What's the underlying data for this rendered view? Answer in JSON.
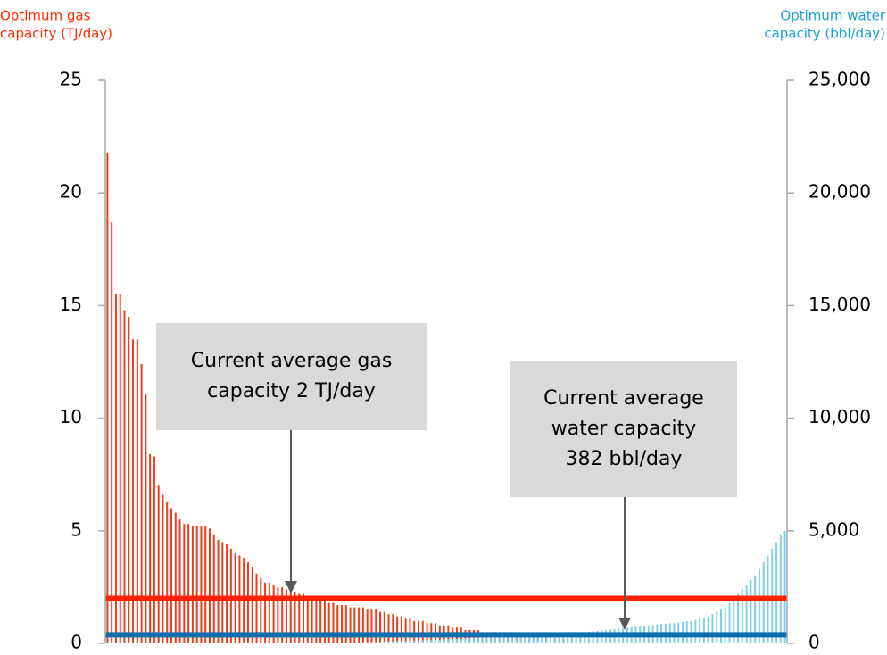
{
  "chart_data": {
    "type": "bar",
    "y_label": [
      "Optimum gas",
      "capacity (TJ/day)"
    ],
    "y2_label": [
      "Optimum water",
      "capacity (bbl/day)"
    ],
    "label_colors": {
      "y": "#ff2a00",
      "y2": "#1aa0d8"
    },
    "categories": [
      null,
      null,
      null,
      null,
      null,
      null,
      null,
      null,
      null,
      null,
      null,
      null,
      null,
      null,
      null,
      null,
      null,
      null,
      null,
      null,
      null,
      null,
      null,
      null,
      null,
      null,
      null,
      null,
      null,
      null,
      null,
      null,
      null,
      null,
      null,
      null,
      null,
      null,
      null,
      null,
      null,
      null,
      null,
      null,
      null,
      null,
      null,
      null,
      null,
      null,
      null,
      null,
      null,
      null,
      null,
      null,
      null,
      null,
      null,
      null,
      null,
      null,
      null,
      null,
      null,
      null,
      null,
      null,
      null,
      null,
      null,
      null,
      null,
      null,
      null,
      null,
      null,
      null,
      null,
      null,
      null,
      null,
      null,
      null,
      null,
      null,
      null,
      null,
      null,
      null,
      null,
      null,
      null,
      null,
      null,
      null,
      null,
      null,
      null,
      null,
      null,
      null,
      null,
      null,
      null,
      null,
      null,
      null,
      null,
      null,
      null,
      null,
      null,
      null,
      null,
      null,
      null,
      null,
      null,
      null,
      null,
      null,
      null,
      null,
      null,
      null,
      null,
      null,
      null,
      null,
      null,
      null,
      null,
      null,
      null,
      null,
      null,
      null,
      null,
      null,
      null,
      null,
      null,
      null,
      null,
      null,
      null,
      null,
      null,
      null,
      null,
      null,
      null,
      null,
      null,
      null,
      null,
      null,
      null,
      null
    ],
    "series": [
      {
        "color": "#e8401c",
        "axis": "y",
        "values": [
          21.8,
          18.7,
          15.5,
          15.5,
          14.8,
          14.5,
          13.5,
          13.5,
          12.4,
          11.1,
          8.4,
          8.3,
          7.0,
          6.6,
          6.3,
          6.0,
          5.8,
          5.5,
          5.3,
          5.3,
          5.2,
          5.2,
          5.2,
          5.2,
          5.1,
          4.8,
          4.6,
          4.5,
          4.4,
          4.2,
          4.0,
          3.9,
          3.8,
          3.6,
          3.4,
          3.1,
          2.9,
          2.7,
          2.7,
          2.6,
          2.5,
          2.5,
          2.4,
          2.3,
          2.3,
          2.2,
          2.2,
          2.1,
          2.1,
          2.0,
          2.0,
          1.9,
          1.8,
          1.8,
          1.7,
          1.7,
          1.7,
          1.6,
          1.6,
          1.6,
          1.6,
          1.5,
          1.5,
          1.5,
          1.4,
          1.4,
          1.3,
          1.3,
          1.2,
          1.2,
          1.1,
          1.1,
          1.0,
          1.0,
          1.0,
          0.9,
          0.9,
          0.9,
          0.8,
          0.8,
          0.8,
          0.7,
          0.7,
          0.7,
          0.6,
          0.6,
          0.6,
          0.6,
          0.5,
          0.5,
          0.5,
          0.5,
          0.5,
          0.5,
          0.4,
          0.4,
          0.4,
          0.4,
          0.3,
          0.3,
          0.3,
          0.3,
          0.3,
          0.3,
          0.2,
          0.2,
          0.2,
          0.2,
          0.2,
          0.1,
          0.1,
          0.1,
          0.1,
          0.1,
          0.1,
          0.1,
          0.1,
          null,
          null,
          null,
          null,
          null,
          null,
          null,
          null,
          null,
          null,
          null,
          null,
          null,
          null,
          null,
          null,
          null,
          null,
          null,
          null,
          null,
          null,
          null,
          null,
          null,
          null,
          null,
          null,
          null,
          null,
          null,
          null,
          null,
          null,
          null,
          null,
          null,
          null,
          null,
          null,
          null,
          null,
          null
        ]
      },
      {
        "color": "#7fd0ee",
        "axis": "y2",
        "values": [
          null,
          null,
          null,
          null,
          null,
          null,
          null,
          null,
          null,
          null,
          null,
          null,
          null,
          null,
          null,
          null,
          null,
          null,
          null,
          null,
          null,
          null,
          null,
          null,
          null,
          null,
          null,
          null,
          null,
          null,
          null,
          null,
          null,
          null,
          null,
          null,
          null,
          null,
          null,
          null,
          null,
          null,
          null,
          null,
          null,
          null,
          null,
          null,
          null,
          null,
          null,
          null,
          null,
          null,
          null,
          null,
          null,
          null,
          null,
          null,
          50,
          50,
          60,
          60,
          70,
          80,
          80,
          90,
          100,
          100,
          110,
          120,
          120,
          130,
          140,
          150,
          150,
          160,
          170,
          180,
          190,
          200,
          200,
          210,
          220,
          230,
          240,
          250,
          260,
          270,
          280,
          290,
          300,
          300,
          310,
          320,
          330,
          340,
          350,
          360,
          370,
          380,
          390,
          400,
          410,
          420,
          430,
          440,
          450,
          460,
          470,
          480,
          500,
          520,
          540,
          560,
          580,
          600,
          620,
          640,
          660,
          680,
          700,
          720,
          740,
          760,
          780,
          800,
          820,
          840,
          860,
          880,
          900,
          900,
          920,
          950,
          980,
          1000,
          1050,
          1100,
          1150,
          1200,
          1300,
          1400,
          1500,
          1600,
          1800,
          2000,
          2200,
          2400,
          2600,
          2800,
          3000,
          3300,
          3600,
          3900,
          4200,
          4500,
          4800,
          5000
        ]
      }
    ],
    "reference_lines": [
      {
        "value": 2,
        "axis": "y",
        "color": "#ff2200"
      },
      {
        "value": 382,
        "axis": "y2",
        "color": "#0e6fae"
      }
    ],
    "annotations": [
      {
        "lines": [
          "Current average gas",
          "capacity 2 TJ/day"
        ]
      },
      {
        "lines": [
          "Current average",
          "water capacity",
          "382 bbl/day"
        ]
      }
    ],
    "ylim": [
      0,
      25
    ],
    "yticks": [
      0,
      5,
      10,
      15,
      20,
      25
    ],
    "y2lim": [
      0,
      25000
    ],
    "y2ticks": [
      0,
      {
        "value": 5000,
        "label": "5,000"
      },
      {
        "value": 10000,
        "label": "10,000"
      },
      {
        "value": 15000,
        "label": "15,000"
      },
      {
        "value": 20000,
        "label": "20,000"
      },
      {
        "value": 25000,
        "label": "25,000"
      }
    ]
  }
}
